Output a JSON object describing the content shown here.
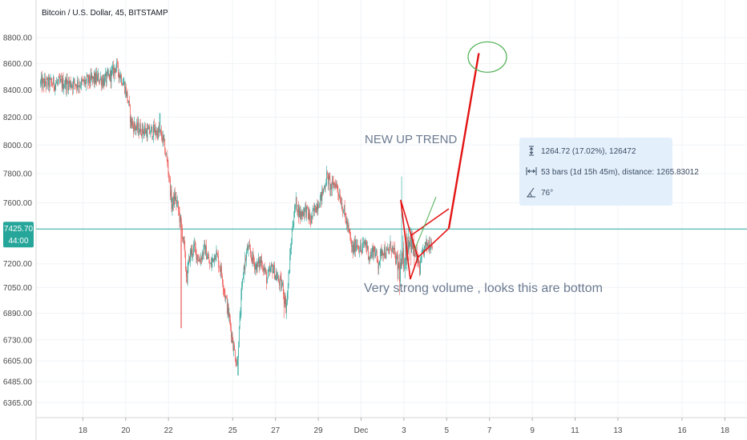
{
  "chart_data": {
    "type": "candlestick",
    "title": "Bitcoin / U.S. Dollar, 45, BITSTAMP",
    "yscale": "log",
    "ylim": [
      6290,
      8920
    ],
    "yticks": [
      "8800.00",
      "8600.00",
      "8400.00",
      "8200.00",
      "8000.00",
      "7800.00",
      "7600.00",
      "7200.00",
      "7050.00",
      "6890.00",
      "6730.00",
      "6605.00",
      "6485.00",
      "6365.00"
    ],
    "xticks": [
      "18",
      "20",
      "22",
      "25",
      "27",
      "29",
      "Dec",
      "3",
      "5",
      "7",
      "9",
      "11",
      "13",
      "16",
      "18"
    ],
    "current_price": "7425.70",
    "current_countdown": "44:00",
    "colors": {
      "up": "#26a69a",
      "down": "#ef5350",
      "drawing": "#e31414",
      "measure_bg": "#e3f0fc",
      "price_line": "#26a69a",
      "circle": "#4caf50"
    },
    "annotations": {
      "trend": "NEW UP TREND",
      "note": "Very strong volume , looks  this are bottom"
    },
    "measure": {
      "price_range": "1264.72 (17.02%), 126472",
      "bars_distance": "53 bars (1d 15h 45m), distance: 1265.83012",
      "angle": "76°"
    },
    "price_path": [
      [
        18.0,
        8450
      ],
      [
        18.35,
        8470
      ],
      [
        18.7,
        8490
      ],
      [
        19.0,
        8470
      ],
      [
        19.35,
        8520
      ],
      [
        19.55,
        8580
      ],
      [
        19.75,
        8510
      ],
      [
        19.95,
        8430
      ],
      [
        20.1,
        8330
      ],
      [
        20.25,
        8160
      ],
      [
        20.5,
        8120
      ],
      [
        20.8,
        8110
      ],
      [
        21.05,
        8090
      ],
      [
        21.3,
        8100
      ],
      [
        21.55,
        8090
      ],
      [
        21.7,
        8060
      ],
      [
        21.85,
        7960
      ],
      [
        22.0,
        7820
      ],
      [
        22.15,
        7580
      ],
      [
        22.3,
        7640
      ],
      [
        22.45,
        7560
      ],
      [
        22.55,
        7480
      ],
      [
        22.7,
        7350
      ],
      [
        22.85,
        7100
      ],
      [
        23.0,
        7260
      ],
      [
        23.2,
        7300
      ],
      [
        23.45,
        7220
      ],
      [
        23.7,
        7300
      ],
      [
        23.95,
        7180
      ],
      [
        24.2,
        7280
      ],
      [
        24.45,
        7160
      ],
      [
        24.65,
        7000
      ],
      [
        24.85,
        6850
      ],
      [
        25.05,
        6680
      ],
      [
        25.2,
        6580
      ],
      [
        25.35,
        6880
      ],
      [
        25.5,
        7160
      ],
      [
        25.7,
        7300
      ],
      [
        25.9,
        7240
      ],
      [
        26.1,
        7180
      ],
      [
        26.35,
        7220
      ],
      [
        26.6,
        7100
      ],
      [
        26.85,
        7180
      ],
      [
        27.1,
        7100
      ],
      [
        27.35,
        7050
      ],
      [
        27.5,
        6920
      ],
      [
        27.65,
        7180
      ],
      [
        27.8,
        7460
      ],
      [
        27.95,
        7600
      ],
      [
        28.15,
        7520
      ],
      [
        28.4,
        7560
      ],
      [
        28.65,
        7480
      ],
      [
        28.9,
        7580
      ],
      [
        29.15,
        7640
      ],
      [
        29.4,
        7780
      ],
      [
        29.6,
        7700
      ],
      [
        29.8,
        7740
      ],
      [
        30.0,
        7650
      ],
      [
        30.2,
        7540
      ],
      [
        30.4,
        7420
      ],
      [
        30.6,
        7280
      ],
      [
        30.8,
        7340
      ],
      [
        31.0,
        7280
      ],
      [
        31.2,
        7340
      ],
      [
        31.4,
        7240
      ],
      [
        31.6,
        7300
      ],
      [
        31.8,
        7200
      ],
      [
        32.0,
        7300
      ],
      [
        32.2,
        7260
      ],
      [
        32.4,
        7320
      ],
      [
        32.6,
        7240
      ],
      [
        32.8,
        7150
      ],
      [
        33.0,
        7240
      ],
      [
        33.25,
        7380
      ],
      [
        33.45,
        7280
      ],
      [
        33.6,
        7240
      ],
      [
        33.75,
        7160
      ],
      [
        33.9,
        7280
      ],
      [
        34.05,
        7320
      ],
      [
        34.2,
        7330
      ],
      [
        34.35,
        7350
      ]
    ],
    "drawings": {
      "triangle": [
        [
          33.3,
          7102
        ],
        [
          32.85,
          7620
        ],
        [
          33.65,
          7240
        ]
      ],
      "wedge_lower": [
        [
          33.65,
          7240
        ],
        [
          35.1,
          7430
        ]
      ],
      "wedge_upper": [
        [
          33.3,
          7380
        ],
        [
          35.1,
          7560
        ]
      ],
      "projection": [
        [
          35.1,
          7430
        ],
        [
          36.5,
          8680
        ]
      ],
      "green_path": [
        [
          33.5,
          7290
        ],
        [
          34.0,
          7460
        ],
        [
          34.5,
          7640
        ]
      ],
      "circle_center": [
        36.9,
        8650
      ]
    }
  }
}
